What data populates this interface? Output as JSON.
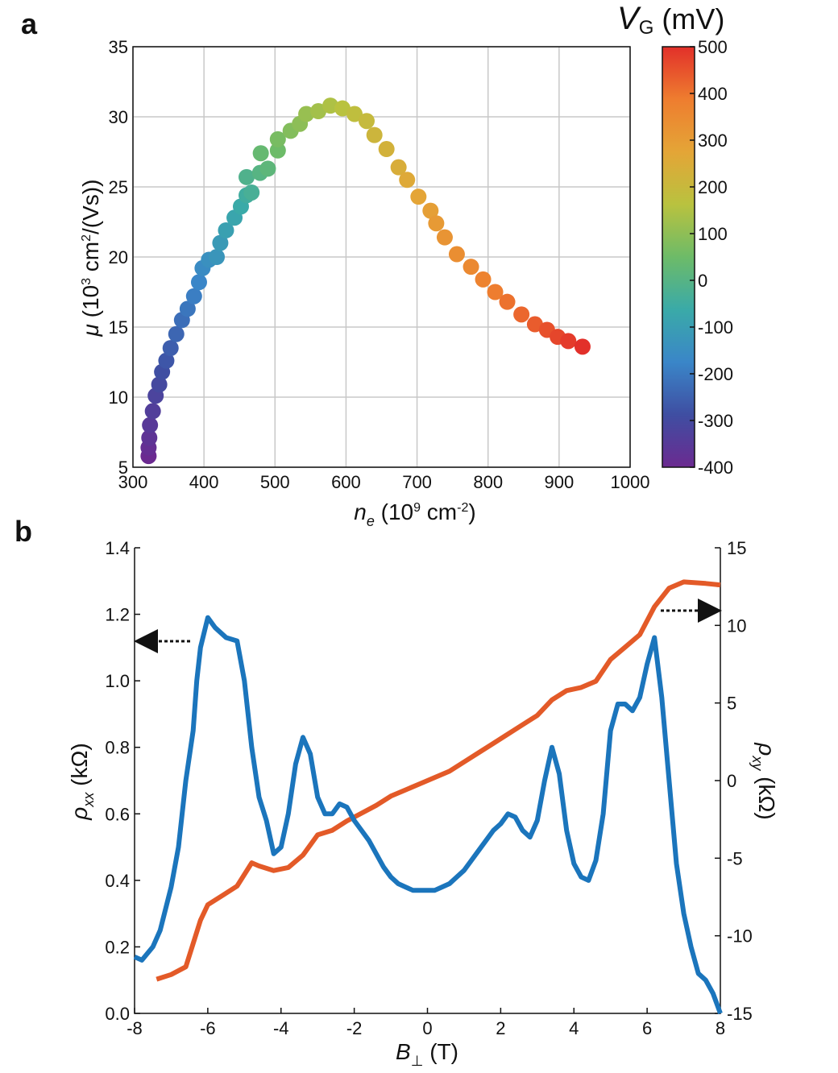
{
  "chart_data": [
    {
      "type": "scatter",
      "panel_label": "a",
      "xlabel": [
        "n",
        "e",
        " (10",
        "9",
        " cm",
        "-2",
        ")"
      ],
      "ylabel": [
        "μ",
        " (10",
        "3",
        " cm",
        "2",
        "/(Vs))"
      ],
      "xlim": [
        300,
        1000
      ],
      "ylim": [
        5,
        35
      ],
      "xticks": [
        300,
        400,
        500,
        600,
        700,
        800,
        900,
        1000
      ],
      "yticks": [
        5,
        10,
        15,
        20,
        25,
        30,
        35
      ],
      "grid": true,
      "x": [
        322,
        322,
        323,
        324,
        328,
        332,
        337,
        341,
        347,
        353,
        361,
        369,
        377,
        386,
        393,
        398,
        407,
        418,
        423,
        431,
        443,
        452,
        460,
        467,
        460,
        479,
        490,
        480,
        504,
        504,
        522,
        535,
        544,
        561,
        578,
        595,
        612,
        629,
        640,
        657,
        674,
        686,
        702,
        719,
        727,
        739,
        756,
        776,
        793,
        810,
        827,
        847,
        866,
        883,
        898,
        913,
        933
      ],
      "values": [
        5.8,
        6.4,
        7.1,
        8,
        9,
        10.1,
        10.9,
        11.8,
        12.6,
        13.5,
        14.5,
        15.5,
        16.3,
        17.2,
        18.2,
        19.2,
        19.8,
        20,
        21,
        21.9,
        22.8,
        23.6,
        24.4,
        24.6,
        25.7,
        26,
        26.3,
        27.4,
        27.6,
        28.4,
        29,
        29.5,
        30.2,
        30.4,
        30.8,
        30.6,
        30.2,
        29.7,
        28.7,
        27.7,
        26.4,
        25.5,
        24.3,
        23.3,
        22.4,
        21.4,
        20.2,
        19.3,
        18.4,
        17.5,
        16.8,
        15.9,
        15.2,
        14.8,
        14.3,
        14,
        13.6
      ],
      "colors": [
        -400,
        -384,
        -368,
        -352,
        -336,
        -320,
        -304,
        -288,
        -271,
        -255,
        -239,
        -223,
        -207,
        -191,
        -175,
        -159,
        -143,
        -127,
        -111,
        -95,
        -79,
        -63,
        -46,
        -30,
        -14,
        2,
        18,
        34,
        50,
        66,
        82,
        98,
        114,
        130,
        146,
        162,
        179,
        195,
        211,
        227,
        243,
        259,
        275,
        291,
        307,
        323,
        339,
        355,
        371,
        388,
        404,
        420,
        436,
        452,
        468,
        484,
        500
      ],
      "colorbar": {
        "label": [
          "V",
          "G",
          " (mV)"
        ],
        "clim": [
          -400,
          500
        ],
        "ticks": [
          -400,
          -300,
          -200,
          -100,
          0,
          100,
          200,
          300,
          400,
          500
        ],
        "colormap": [
          "#6b2a90",
          "#3f4ea2",
          "#3a86c8",
          "#3aaaa8",
          "#6dbb68",
          "#b9c23f",
          "#e4a537",
          "#ee7d2f",
          "#e2302a"
        ]
      }
    },
    {
      "type": "line",
      "panel_label": "b",
      "xlabel": [
        "B",
        "⊥",
        " (T)"
      ],
      "ylabel": [
        "ρ",
        "xx",
        " (kΩ)"
      ],
      "y2label": [
        "ρ",
        "xy",
        " (kΩ)"
      ],
      "xlim": [
        -8,
        8
      ],
      "ylim": [
        0,
        1.4
      ],
      "y2lim": [
        -15,
        15
      ],
      "xticks": [
        -8,
        -6,
        -4,
        -2,
        0,
        2,
        4,
        6,
        8
      ],
      "yticks": [
        {
          "value": 0,
          "label": "0.0"
        },
        0.2,
        0.4,
        0.6,
        0.8,
        {
          "value": 1,
          "label": "1.0"
        },
        1.2,
        1.4
      ],
      "y2ticks": [
        -15,
        -10,
        -5,
        0,
        5,
        10,
        15
      ],
      "series": [
        {
          "color": "#e35a28",
          "axis": "y2",
          "x": [
            -7.4,
            -7,
            -6.6,
            -6.4,
            -6.2,
            -6,
            -5.6,
            -5.2,
            -4.8,
            -4.6,
            -4.2,
            -3.8,
            -3.4,
            -3,
            -2.6,
            -2.2,
            -1.8,
            -1.4,
            -1,
            -0.6,
            -0.2,
            0.2,
            0.6,
            1,
            1.4,
            1.8,
            2.2,
            2.6,
            3,
            3.4,
            3.8,
            4.2,
            4.6,
            5,
            5.4,
            5.8,
            6.2,
            6.6,
            7,
            7.6,
            8
          ],
          "values": [
            -12.8,
            -12.5,
            -12,
            -10.5,
            -9,
            -8,
            -7.4,
            -6.8,
            -5.3,
            -5.5,
            -5.8,
            -5.6,
            -4.8,
            -3.5,
            -3.2,
            -2.6,
            -2.1,
            -1.6,
            -1,
            -0.6,
            -0.2,
            0.2,
            0.6,
            1.2,
            1.8,
            2.4,
            3,
            3.6,
            4.2,
            5.2,
            5.8,
            6,
            6.4,
            7.8,
            8.6,
            9.4,
            11.2,
            12.4,
            12.8,
            12.7,
            12.6
          ]
        },
        {
          "color": "#1b75bc",
          "x": [
            -8,
            -7.8,
            -7.5,
            -7.3,
            -7,
            -6.8,
            -6.6,
            -6.4,
            -6.3,
            -6.2,
            -6,
            -5.8,
            -5.5,
            -5.2,
            -5,
            -4.8,
            -4.6,
            -4.4,
            -4.2,
            -4,
            -3.8,
            -3.6,
            -3.4,
            -3.2,
            -3,
            -2.8,
            -2.6,
            -2.4,
            -2.2,
            -2,
            -1.8,
            -1.6,
            -1.4,
            -1.2,
            -1,
            -0.8,
            -0.6,
            -0.4,
            -0.2,
            0,
            0.2,
            0.4,
            0.6,
            0.8,
            1,
            1.2,
            1.4,
            1.6,
            1.8,
            2,
            2.2,
            2.4,
            2.6,
            2.8,
            3,
            3.2,
            3.4,
            3.6,
            3.8,
            4,
            4.2,
            4.4,
            4.6,
            4.8,
            5,
            5.2,
            5.4,
            5.6,
            5.8,
            6,
            6.2,
            6.4,
            6.6,
            6.8,
            7,
            7.2,
            7.4,
            7.6,
            7.8,
            8
          ],
          "values": [
            0.17,
            0.16,
            0.2,
            0.25,
            0.38,
            0.5,
            0.7,
            0.85,
            1,
            1.1,
            1.19,
            1.16,
            1.13,
            1.12,
            1,
            0.8,
            0.65,
            0.58,
            0.48,
            0.5,
            0.6,
            0.75,
            0.83,
            0.78,
            0.65,
            0.6,
            0.6,
            0.63,
            0.62,
            0.58,
            0.55,
            0.52,
            0.48,
            0.44,
            0.41,
            0.39,
            0.38,
            0.37,
            0.37,
            0.37,
            0.37,
            0.38,
            0.39,
            0.41,
            0.43,
            0.46,
            0.49,
            0.52,
            0.55,
            0.57,
            0.6,
            0.59,
            0.55,
            0.53,
            0.58,
            0.7,
            0.8,
            0.72,
            0.55,
            0.45,
            0.41,
            0.4,
            0.46,
            0.6,
            0.85,
            0.93,
            0.93,
            0.91,
            0.95,
            1.05,
            1.13,
            0.95,
            0.7,
            0.45,
            0.3,
            0.2,
            0.12,
            0.1,
            0.06,
            0
          ]
        }
      ]
    }
  ]
}
